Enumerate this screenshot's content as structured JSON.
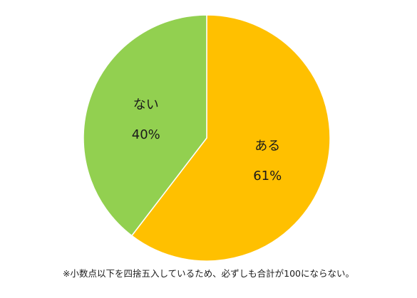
{
  "chart_data": {
    "type": "pie",
    "slices": [
      {
        "label": "ある",
        "value": 61,
        "value_label": "61%",
        "color": "#FFC000"
      },
      {
        "label": "ない",
        "value": 40,
        "value_label": "40%",
        "color": "#92D050"
      }
    ],
    "start_angle_deg": 0,
    "direction": "clockwise"
  },
  "footnote": "※小数点以下を四捨五入しているため、必ずしも合計が100にならない。"
}
